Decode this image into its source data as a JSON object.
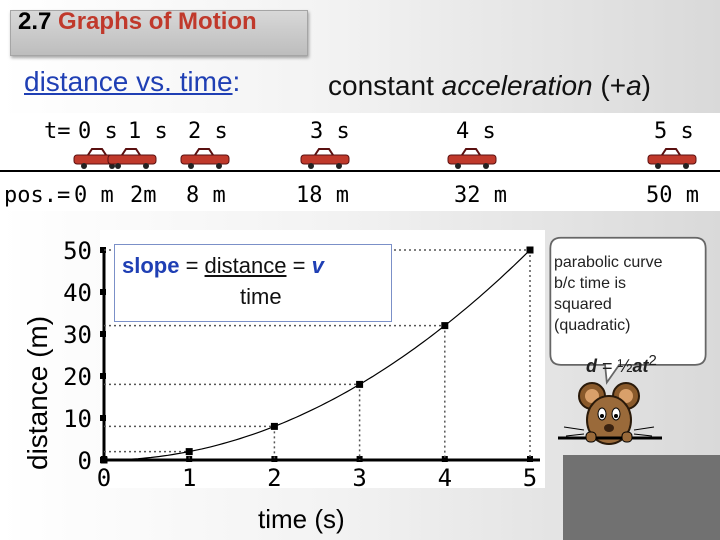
{
  "slide": {
    "title_number": "2.7",
    "title_name": "Graphs of Motion",
    "heading_left": "distance vs. time",
    "heading_left_colon": ":",
    "heading_right_prefix": "constant ",
    "heading_right_italic": "acceleration",
    "heading_right_paren_open": " (+",
    "heading_right_var": "a",
    "heading_right_paren_close": ")"
  },
  "strip": {
    "time_prefix": "t=",
    "time_labels": [
      "0 s",
      "1 s",
      "2 s",
      "3 s",
      "4 s",
      "5 s"
    ],
    "pos_prefix": "pos.=",
    "position_labels": [
      "0 m",
      "2m",
      "8 m",
      "18 m",
      "32 m",
      "50 m"
    ],
    "car_color": "#c0392b"
  },
  "graph": {
    "ylabel": "distance (m)",
    "xlabel": "time (s)",
    "y_ticks": [
      "0",
      "10",
      "20",
      "30",
      "40",
      "50"
    ],
    "x_ticks": [
      "0",
      "1",
      "2",
      "3",
      "4",
      "5"
    ]
  },
  "slope_box": {
    "word_slope": "slope",
    "equals1": " = ",
    "word_distance": "distance",
    "equals2": " = ",
    "word_v": "v",
    "word_time": "time"
  },
  "note": {
    "line1": "parabolic curve",
    "line2": "b/c time is",
    "line3": "squared",
    "line4": "(quadratic)",
    "formula_d": "d",
    "formula_eq": " = ½",
    "formula_at": "at",
    "formula_exp": "2"
  },
  "chart_data": {
    "type": "scatter",
    "x": [
      0,
      1,
      2,
      3,
      4,
      5
    ],
    "y": [
      0,
      2,
      8,
      18,
      32,
      50
    ],
    "xlabel": "time (s)",
    "ylabel": "distance (m)",
    "xlim": [
      0,
      5
    ],
    "ylim": [
      0,
      50
    ],
    "curve": "parabolic",
    "grid": false,
    "guide_lines": "dotted"
  }
}
